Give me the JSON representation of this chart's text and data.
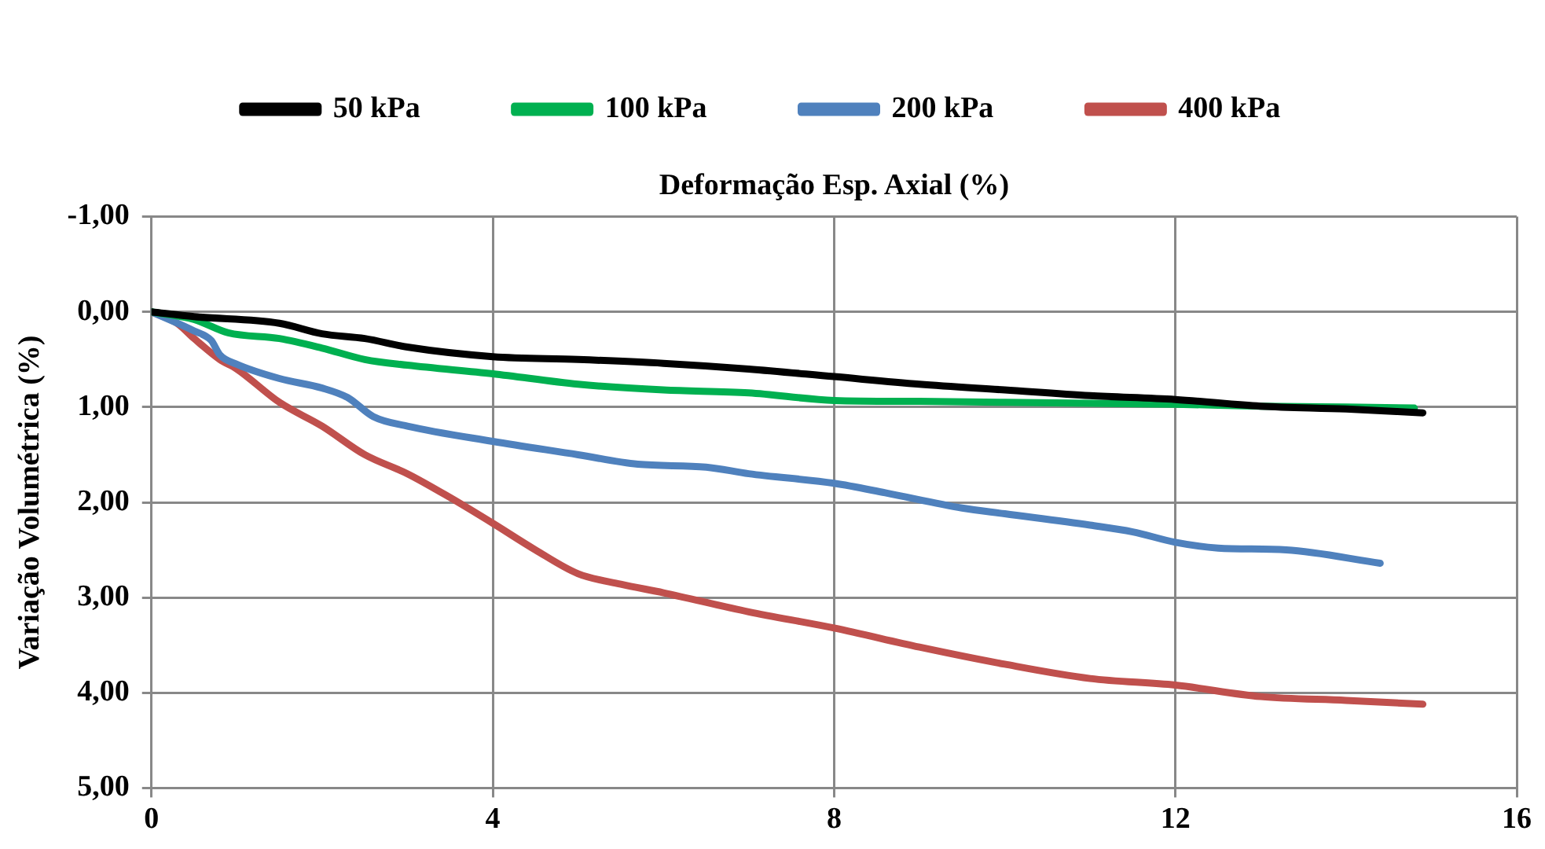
{
  "chart_data": {
    "type": "line",
    "xlabel": "Deformação Esp. Axial (%)",
    "ylabel": "Variação Volumétrica (%)",
    "xlim": [
      0,
      16
    ],
    "xticks": [
      0,
      4,
      8,
      12,
      16
    ],
    "ylim": [
      5,
      -1
    ],
    "yticks": [
      {
        "value": -1,
        "label": "-1,00"
      },
      {
        "value": 0,
        "label": "0,00"
      },
      {
        "value": 1,
        "label": "1,00"
      },
      {
        "value": 2,
        "label": "2,00"
      },
      {
        "value": 3,
        "label": "3,00"
      },
      {
        "value": 4,
        "label": "4,00"
      },
      {
        "value": 5,
        "label": "5,00"
      }
    ],
    "grid": true,
    "legend": "top",
    "marker": "none",
    "line_style": "solid",
    "series": [
      {
        "name": "50 kPa",
        "color": "#000000",
        "x": [
          0,
          0.5,
          1.5,
          2,
          2.5,
          3,
          4,
          5,
          6,
          7,
          8,
          9,
          10,
          11,
          12,
          13,
          14,
          14.9
        ],
        "values": [
          0,
          0.05,
          0.12,
          0.23,
          0.28,
          0.37,
          0.47,
          0.5,
          0.54,
          0.6,
          0.68,
          0.76,
          0.82,
          0.88,
          0.92,
          0.99,
          1.02,
          1.06
        ]
      },
      {
        "name": "100 kPa",
        "color": "#00b050",
        "x": [
          0,
          0.5,
          0.9,
          1.5,
          2,
          2.5,
          3,
          4,
          5,
          6,
          7,
          8,
          9,
          10,
          11,
          12,
          13,
          14,
          14.8
        ],
        "values": [
          0,
          0.08,
          0.22,
          0.28,
          0.38,
          0.5,
          0.56,
          0.65,
          0.76,
          0.82,
          0.85,
          0.93,
          0.94,
          0.95,
          0.96,
          0.97,
          0.99,
          1.0,
          1.01
        ]
      },
      {
        "name": "200 kPa",
        "color": "#4f81bd",
        "x": [
          0,
          0.5,
          0.7,
          0.8,
          1,
          1.5,
          2,
          2.3,
          2.6,
          3,
          4,
          5,
          5.7,
          6.5,
          7,
          8,
          8.6,
          9.5,
          10,
          11,
          11.5,
          12,
          12.5,
          13.3,
          14.4
        ],
        "values": [
          0,
          0.2,
          0.3,
          0.45,
          0.55,
          0.7,
          0.8,
          0.9,
          1.1,
          1.2,
          1.36,
          1.5,
          1.6,
          1.63,
          1.7,
          1.8,
          1.9,
          2.06,
          2.12,
          2.24,
          2.31,
          2.42,
          2.48,
          2.5,
          2.64
        ]
      },
      {
        "name": "400 kPa",
        "color": "#c0504d",
        "x": [
          0,
          0.3,
          0.5,
          0.8,
          1,
          1.5,
          2,
          2.5,
          3,
          3.5,
          4,
          4.5,
          5,
          5.5,
          6,
          7,
          8,
          9,
          10,
          11,
          12,
          13,
          14,
          14.9
        ],
        "values": [
          0,
          0.12,
          0.28,
          0.5,
          0.6,
          0.95,
          1.2,
          1.5,
          1.7,
          1.95,
          2.22,
          2.5,
          2.75,
          2.86,
          2.95,
          3.15,
          3.32,
          3.52,
          3.7,
          3.85,
          3.92,
          4.04,
          4.08,
          4.12
        ]
      }
    ]
  }
}
